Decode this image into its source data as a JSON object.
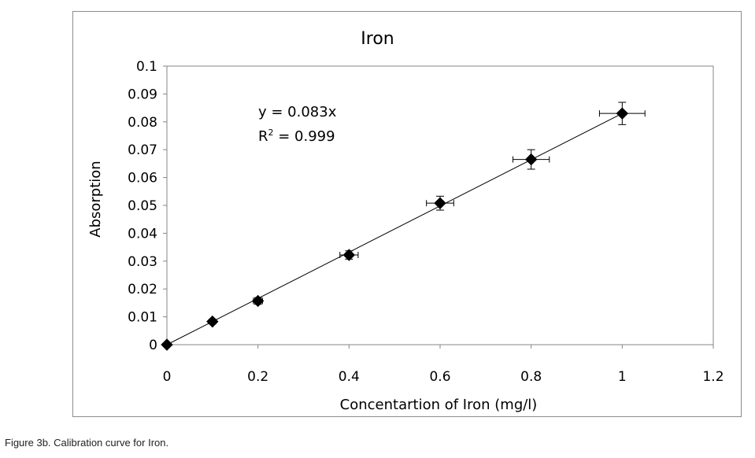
{
  "caption": "Figure 3b. Calibration curve for Iron.",
  "chart_data": {
    "type": "scatter",
    "title": "Iron",
    "xlabel": "Concentartion of Iron (mg/l)",
    "ylabel": "Absorption",
    "xlim": [
      0,
      1.2
    ],
    "ylim": [
      0,
      0.1
    ],
    "x_ticks": [
      "0",
      "0.2",
      "0.4",
      "0.6",
      "0.8",
      "1",
      "1.2"
    ],
    "y_ticks": [
      "0",
      "0.01",
      "0.02",
      "0.03",
      "0.04",
      "0.05",
      "0.06",
      "0.07",
      "0.08",
      "0.09",
      "0.1"
    ],
    "grid": false,
    "legend": "none",
    "marker": "diamond",
    "marker_color": "#000000",
    "points": [
      {
        "x": 0,
        "y": 0,
        "xerr": 0,
        "yerr": 0
      },
      {
        "x": 0.1,
        "y": 0.0083,
        "xerr": 0.005,
        "yerr": 0.0008
      },
      {
        "x": 0.2,
        "y": 0.0157,
        "xerr": 0.01,
        "yerr": 0.0012
      },
      {
        "x": 0.4,
        "y": 0.0322,
        "xerr": 0.02,
        "yerr": 0.0015
      },
      {
        "x": 0.6,
        "y": 0.0508,
        "xerr": 0.03,
        "yerr": 0.0025
      },
      {
        "x": 0.8,
        "y": 0.0665,
        "xerr": 0.04,
        "yerr": 0.0035
      },
      {
        "x": 1.0,
        "y": 0.083,
        "xerr": 0.05,
        "yerr": 0.004
      }
    ],
    "trendline": {
      "slope": 0.083,
      "intercept": 0,
      "x_range": [
        0,
        1.0
      ]
    },
    "annotations": {
      "equation": "y = 0.083x",
      "r2_prefix": "R",
      "r2_sup": "2",
      "r2_suffix": " = 0.999"
    }
  }
}
